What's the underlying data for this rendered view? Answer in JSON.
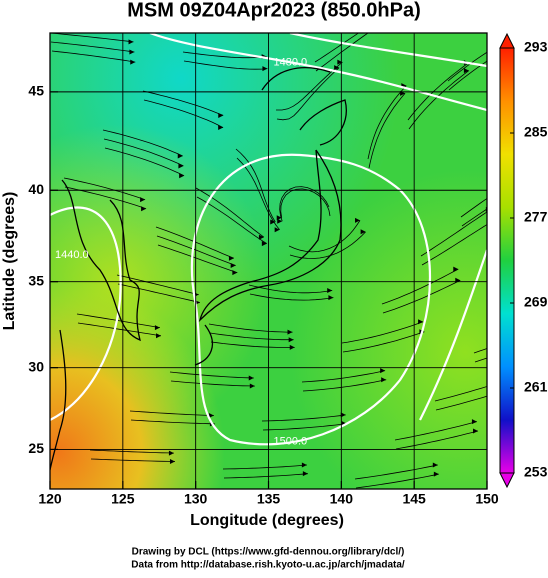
{
  "chart_data": {
    "type": "map",
    "title": "MSM 09Z04Apr2023 (850.0hPa)",
    "x_label": "Longitude (degrees)",
    "y_label": "Latitude  (degrees)",
    "projection": "mercator",
    "xlim": [
      120,
      150
    ],
    "xticks": [
      120,
      125,
      130,
      135,
      140,
      145,
      150
    ],
    "ylim": [
      22.5,
      47.8
    ],
    "yticks": [
      25,
      30,
      35,
      40,
      45
    ],
    "grid": true,
    "contour_labels": [
      "1480.0",
      "1440.0",
      "1500.0"
    ],
    "colorbar": {
      "lim": [
        253,
        293
      ],
      "ticks": [
        253,
        261,
        269,
        277,
        285,
        293
      ],
      "colors": [
        "#e800e8",
        "#1010c8",
        "#0090ff",
        "#00e0d0",
        "#20d040",
        "#a8e000",
        "#f0e000",
        "#ff9000",
        "#ff2000"
      ]
    },
    "credits": [
      "Drawing by DCL (https://www.gfd-dennou.org/library/dcl/)",
      "Data from http://database.rish.kyoto-u.ac.jp/arch/jmadata/"
    ]
  }
}
